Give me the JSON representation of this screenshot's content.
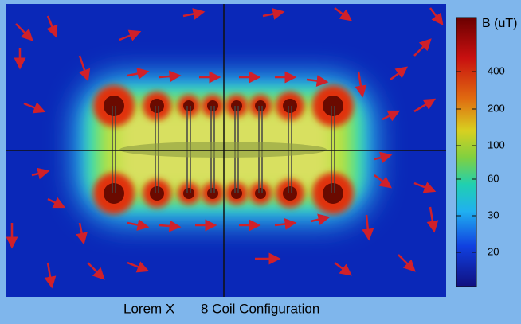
{
  "colorbar": {
    "title": "B (uT)",
    "ticks": [
      "400",
      "200",
      "100",
      "60",
      "30",
      "20"
    ]
  },
  "caption": {
    "left": "Lorem X",
    "right": "8 Coil Configuration"
  }
}
